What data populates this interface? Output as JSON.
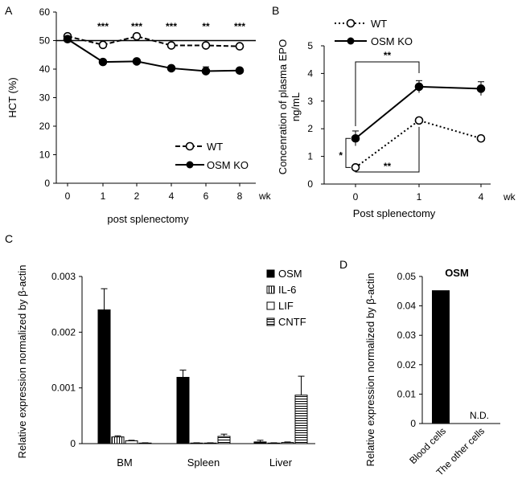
{
  "panels": {
    "a": "A",
    "b": "B",
    "c": "C",
    "d": "D"
  },
  "chart_data": [
    {
      "id": "A",
      "type": "line",
      "xlabel": "post splenectomy",
      "ylabel": "HCT (%)",
      "x_unit": "wk",
      "categories": [
        "0",
        "1",
        "2",
        "4",
        "6",
        "8"
      ],
      "ylim": [
        0,
        60
      ],
      "yticks": [
        0,
        10,
        20,
        30,
        40,
        50,
        60
      ],
      "reference_line": 50,
      "series": [
        {
          "name": "WT",
          "style": "dashed",
          "marker": "open-circle",
          "values": [
            51.5,
            48.5,
            51.5,
            48.3,
            48.3,
            48.0
          ],
          "errors": [
            0.5,
            0.5,
            0.5,
            0.4,
            0.4,
            0.4
          ]
        },
        {
          "name": "OSM KO",
          "style": "solid",
          "marker": "filled-circle",
          "values": [
            50.5,
            42.5,
            42.7,
            40.3,
            39.3,
            39.5
          ],
          "errors": [
            0.5,
            0.5,
            0.5,
            0.7,
            1.5,
            0.5
          ]
        }
      ],
      "significance": [
        "",
        "***",
        "***",
        "***",
        "**",
        "***"
      ]
    },
    {
      "id": "B",
      "type": "line",
      "xlabel": "Post splenectomy",
      "ylabel_lines": [
        "Concenration of plasma EPO",
        "ng/mL"
      ],
      "x_unit": "wk",
      "categories": [
        "0",
        "1",
        "4"
      ],
      "ylim": [
        0,
        5
      ],
      "yticks": [
        0,
        1,
        2,
        3,
        4,
        5
      ],
      "series": [
        {
          "name": "WT",
          "style": "dotted",
          "marker": "open-circle",
          "values": [
            0.6,
            2.3,
            1.65
          ],
          "errors": [
            0.05,
            0.05,
            0.05
          ]
        },
        {
          "name": "OSM KO",
          "style": "solid",
          "marker": "filled-circle",
          "values": [
            1.65,
            3.52,
            3.45
          ],
          "errors": [
            0.27,
            0.22,
            0.25
          ]
        }
      ],
      "brackets": [
        {
          "label": "**",
          "from": "OSM KO@0",
          "to": "OSM KO@1"
        },
        {
          "label": "**",
          "from": "WT@0",
          "to": "WT@1"
        },
        {
          "label": "*",
          "from": "WT@0",
          "to": "OSM KO@0"
        }
      ]
    },
    {
      "id": "C",
      "type": "bar",
      "ylabel": "Relative expression normalized by β-actin",
      "categories": [
        "BM",
        "Spleen",
        "Liver"
      ],
      "ylim": [
        0,
        0.003
      ],
      "yticks": [
        "0",
        "0.001",
        "0.002",
        "0.003"
      ],
      "series": [
        {
          "name": "OSM",
          "fill": "solid",
          "values": [
            0.0024,
            0.00119,
            3e-05
          ],
          "errors": [
            0.00038,
            0.00013,
            3e-05
          ]
        },
        {
          "name": "IL-6",
          "fill": "vertical-lines",
          "values": [
            0.00012,
            1e-05,
            1e-05
          ],
          "errors": [
            2e-05,
            5e-06,
            5e-06
          ]
        },
        {
          "name": "LIF",
          "fill": "white",
          "values": [
            5e-05,
            1e-05,
            2e-05
          ],
          "errors": [
            1e-05,
            5e-06,
            1e-05
          ]
        },
        {
          "name": "CNTF",
          "fill": "horizontal-lines",
          "values": [
            1e-05,
            0.00013,
            0.00087
          ],
          "errors": [
            5e-06,
            4e-05,
            0.00034
          ]
        }
      ]
    },
    {
      "id": "D",
      "type": "bar",
      "title": "OSM",
      "ylabel": "Relative expression normalized by β-actin",
      "categories": [
        "Blood cells",
        "The other cells"
      ],
      "values": [
        0.0453,
        0
      ],
      "ylim": [
        0,
        0.05
      ],
      "yticks": [
        "0",
        "0.01",
        "0.02",
        "0.03",
        "0.04",
        "0.05"
      ],
      "annotations": [
        "",
        "N.D."
      ]
    }
  ]
}
